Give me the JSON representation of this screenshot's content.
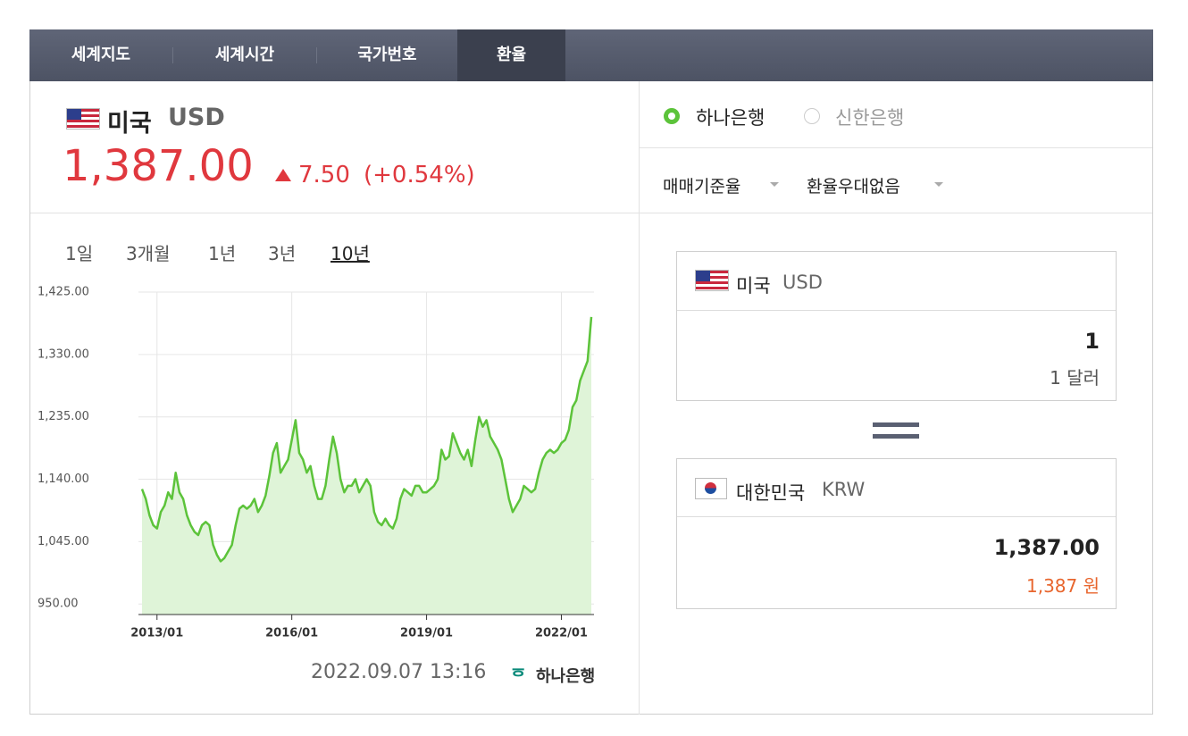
{
  "tabs": [
    "세계지도",
    "세계시간",
    "국가번호",
    "환율"
  ],
  "header": {
    "country": "미국",
    "currency": "USD",
    "price": "1,387.00",
    "change": "7.50",
    "change_pct": "(+0.54%)"
  },
  "banks": [
    "하나은행",
    "신한은행"
  ],
  "dropdowns": [
    "매매기준율",
    "환율우대없음"
  ],
  "periods": [
    "1일",
    "3개월",
    "1년",
    "3년",
    "10년"
  ],
  "chart_data": {
    "type": "line",
    "x": [
      "2012/09",
      "2012/10",
      "2012/11",
      "2012/12",
      "2013/01",
      "2013/02",
      "2013/03",
      "2013/04",
      "2013/05",
      "2013/06",
      "2013/07",
      "2013/08",
      "2013/09",
      "2013/10",
      "2013/11",
      "2013/12",
      "2014/01",
      "2014/02",
      "2014/03",
      "2014/04",
      "2014/05",
      "2014/06",
      "2014/07",
      "2014/08",
      "2014/09",
      "2014/10",
      "2014/11",
      "2014/12",
      "2015/01",
      "2015/02",
      "2015/03",
      "2015/04",
      "2015/05",
      "2015/06",
      "2015/07",
      "2015/08",
      "2015/09",
      "2015/10",
      "2015/11",
      "2015/12",
      "2016/01",
      "2016/02",
      "2016/03",
      "2016/04",
      "2016/05",
      "2016/06",
      "2016/07",
      "2016/08",
      "2016/09",
      "2016/10",
      "2016/11",
      "2016/12",
      "2017/01",
      "2017/02",
      "2017/03",
      "2017/04",
      "2017/05",
      "2017/06",
      "2017/07",
      "2017/08",
      "2017/09",
      "2017/10",
      "2017/11",
      "2017/12",
      "2018/01",
      "2018/02",
      "2018/03",
      "2018/04",
      "2018/05",
      "2018/06",
      "2018/07",
      "2018/08",
      "2018/09",
      "2018/10",
      "2018/11",
      "2018/12",
      "2019/01",
      "2019/02",
      "2019/03",
      "2019/04",
      "2019/05",
      "2019/06",
      "2019/07",
      "2019/08",
      "2019/09",
      "2019/10",
      "2019/11",
      "2019/12",
      "2020/01",
      "2020/02",
      "2020/03",
      "2020/04",
      "2020/05",
      "2020/06",
      "2020/07",
      "2020/08",
      "2020/09",
      "2020/10",
      "2020/11",
      "2020/12",
      "2021/01",
      "2021/02",
      "2021/03",
      "2021/04",
      "2021/05",
      "2021/06",
      "2021/07",
      "2021/08",
      "2021/09",
      "2021/10",
      "2021/11",
      "2021/12",
      "2022/01",
      "2022/02",
      "2022/03",
      "2022/04",
      "2022/05",
      "2022/06",
      "2022/07",
      "2022/08",
      "2022/09"
    ],
    "series": [
      {
        "color": "#5cc33a",
        "fill": "#dff4d8",
        "values": [
          1125,
          1110,
          1085,
          1070,
          1065,
          1090,
          1100,
          1120,
          1110,
          1150,
          1120,
          1110,
          1085,
          1070,
          1060,
          1055,
          1070,
          1075,
          1070,
          1040,
          1025,
          1015,
          1020,
          1030,
          1040,
          1070,
          1095,
          1100,
          1095,
          1100,
          1110,
          1090,
          1100,
          1115,
          1145,
          1180,
          1195,
          1150,
          1160,
          1170,
          1200,
          1230,
          1180,
          1170,
          1150,
          1160,
          1130,
          1110,
          1110,
          1130,
          1170,
          1205,
          1180,
          1140,
          1120,
          1130,
          1130,
          1140,
          1120,
          1130,
          1140,
          1130,
          1090,
          1075,
          1070,
          1080,
          1070,
          1065,
          1080,
          1110,
          1125,
          1120,
          1115,
          1130,
          1130,
          1120,
          1120,
          1125,
          1130,
          1140,
          1185,
          1170,
          1175,
          1210,
          1195,
          1180,
          1170,
          1185,
          1160,
          1200,
          1235,
          1220,
          1230,
          1205,
          1195,
          1185,
          1170,
          1140,
          1110,
          1090,
          1100,
          1110,
          1130,
          1125,
          1120,
          1125,
          1150,
          1170,
          1180,
          1185,
          1180,
          1185,
          1195,
          1200,
          1215,
          1250,
          1260,
          1290,
          1305,
          1320,
          1387
        ]
      }
    ],
    "xlim": [
      "2012/09",
      "2022/09"
    ],
    "xticks": [
      "2013/01",
      "2016/01",
      "2019/01",
      "2022/01"
    ],
    "ylim": [
      934,
      1425
    ],
    "yticks": [
      {
        "value": 950,
        "label": "950.00"
      },
      {
        "value": 1045,
        "label": "1,045.00"
      },
      {
        "value": 1140,
        "label": "1,140.00"
      },
      {
        "value": 1235,
        "label": "1,235.00"
      },
      {
        "value": 1330,
        "label": "1,330.00"
      },
      {
        "value": 1425,
        "label": "1,425.00"
      }
    ],
    "grid": true
  },
  "timestamp": "2022.09.07 13:16",
  "source": "하나은행",
  "converter": {
    "from": {
      "country": "미국",
      "currency": "USD",
      "amount": "1",
      "amount_text": "1 달러"
    },
    "to": {
      "country": "대한민국",
      "currency": "KRW",
      "amount": "1,387.00",
      "amount_text": "1,387 원"
    }
  }
}
